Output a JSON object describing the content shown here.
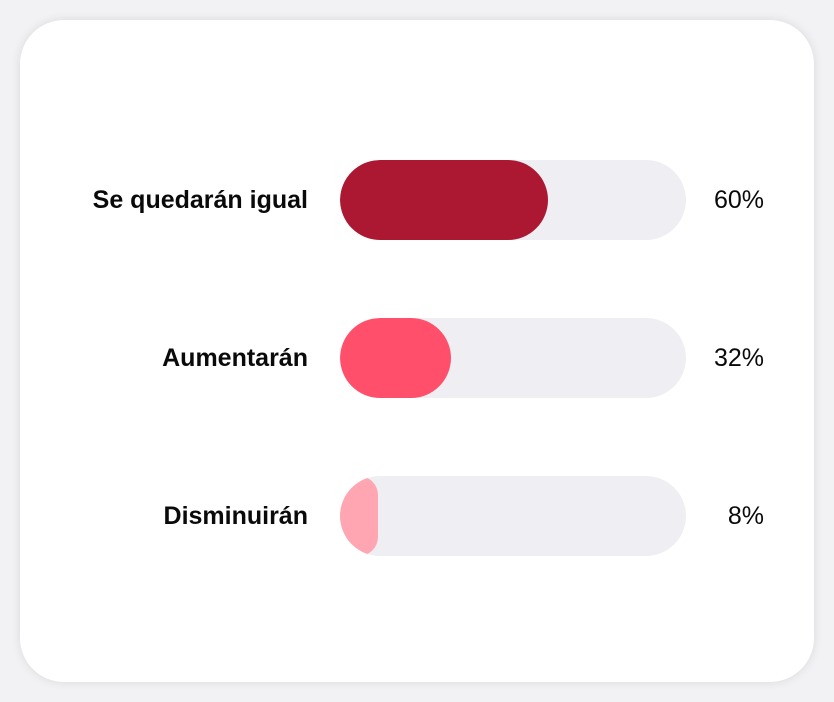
{
  "chart_data": {
    "type": "bar",
    "orientation": "horizontal",
    "categories": [
      "Se quedarán igual",
      "Aumentarán",
      "Disminuirán"
    ],
    "values": [
      60,
      32,
      8
    ],
    "value_labels": [
      "60%",
      "32%",
      "8%"
    ],
    "unit": "%",
    "xlim": [
      0,
      100
    ],
    "grid": false,
    "legend": "none",
    "bar_colors": [
      "#ac1731",
      "#ff4f6b",
      "#ffa6b2"
    ],
    "track_color": "#efeff3"
  }
}
